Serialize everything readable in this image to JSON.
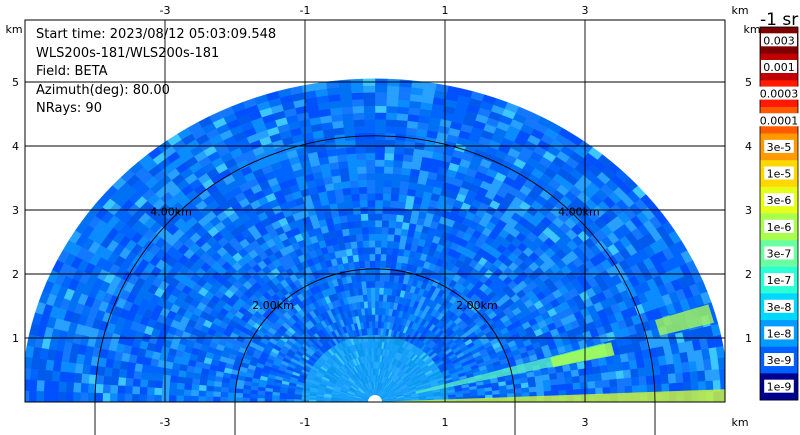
{
  "info": {
    "start_time": "Start time: 2023/08/12 05:03:09.548",
    "instrument": "WLS200s-181/WLS200s-181",
    "field": "Field: BETA",
    "azimuth": "Azimuth(deg): 80.00",
    "nrays": "NRays: 90"
  },
  "colorbar": {
    "title": "-1 sr",
    "labels": [
      "0.003",
      "0.001",
      "0.0003",
      "0.0001",
      "3e-5",
      "1e-5",
      "3e-6",
      "1e-6",
      "3e-7",
      "1e-7",
      "3e-8",
      "1e-8",
      "3e-9",
      "1e-9"
    ],
    "colors": [
      "#7f0000",
      "#c00000",
      "#ff1a00",
      "#ff5a00",
      "#ff9a00",
      "#ffd800",
      "#e6ff1a",
      "#a8ff50",
      "#6affa0",
      "#2cffd6",
      "#00d8ff",
      "#009cff",
      "#0060ff",
      "#00008f"
    ]
  },
  "chart_data": {
    "type": "heatmap",
    "description_type": "radar RHI scan",
    "x_unit": "km",
    "y_unit": "km",
    "xlim": [
      -5.2,
      5.2
    ],
    "ylim": [
      0,
      5.95
    ],
    "x_ticks": [
      -3,
      -1,
      1,
      3
    ],
    "y_ticks": [
      1,
      2,
      3,
      4,
      5
    ],
    "max_range_km": 5.05,
    "range_rings": [
      {
        "radius_km": 2,
        "label": "2.00km"
      },
      {
        "radius_km": 4,
        "label": "4.00km"
      }
    ],
    "grid": true
  }
}
